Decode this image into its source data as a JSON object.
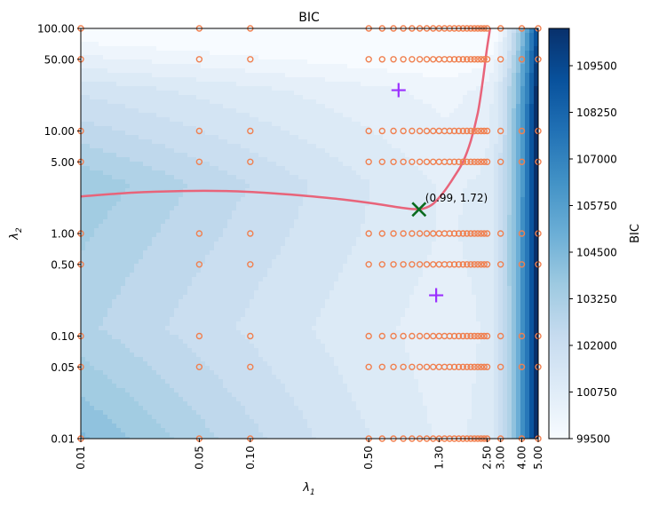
{
  "chart_data": {
    "type": "heatmap",
    "title": "BIC",
    "xlabel": "λ",
    "xlabel_sub": "1",
    "ylabel": "λ",
    "ylabel_sub": "2",
    "x_scale": "log",
    "y_scale": "log",
    "xlim": [
      0.01,
      5.0
    ],
    "ylim": [
      0.01,
      100.0
    ],
    "x_ticks": [
      {
        "value": 0.01,
        "label": "0.01"
      },
      {
        "value": 0.05,
        "label": "0.05"
      },
      {
        "value": 0.1,
        "label": "0.10"
      },
      {
        "value": 0.5,
        "label": "0.50"
      },
      {
        "value": 1.3,
        "label": "1.30"
      },
      {
        "value": 2.5,
        "label": "2.50"
      },
      {
        "value": 3.0,
        "label": "3.00"
      },
      {
        "value": 4.0,
        "label": "4.00"
      },
      {
        "value": 5.0,
        "label": "5.00"
      }
    ],
    "y_ticks": [
      {
        "value": 0.01,
        "label": "0.01"
      },
      {
        "value": 0.05,
        "label": "0.05"
      },
      {
        "value": 0.1,
        "label": "0.10"
      },
      {
        "value": 0.5,
        "label": "0.50"
      },
      {
        "value": 1.0,
        "label": "1.00"
      },
      {
        "value": 5.0,
        "label": "5.00"
      },
      {
        "value": 10.0,
        "label": "10.00"
      },
      {
        "value": 50.0,
        "label": "50.00"
      },
      {
        "value": 100.0,
        "label": "100.00"
      }
    ],
    "colorbar": {
      "label": "BIC",
      "range": [
        99500,
        110500
      ],
      "ticks": [
        {
          "value": 99500,
          "label": "99500"
        },
        {
          "value": 100750,
          "label": "100750"
        },
        {
          "value": 102000,
          "label": "102000"
        },
        {
          "value": 103250,
          "label": "103250"
        },
        {
          "value": 104500,
          "label": "104500"
        },
        {
          "value": 105750,
          "label": "105750"
        },
        {
          "value": 107000,
          "label": "107000"
        },
        {
          "value": 108250,
          "label": "108250"
        },
        {
          "value": 109500,
          "label": "109500"
        }
      ],
      "colormap": [
        "#f7fbff",
        "#deebf7",
        "#c6dbef",
        "#9ecae1",
        "#6baed6",
        "#4292c6",
        "#2171b5",
        "#08519c",
        "#08306b"
      ]
    },
    "grid_points": {
      "color": "#f08050",
      "x": [
        0.01,
        0.05,
        0.1,
        0.5,
        0.6,
        0.7,
        0.8,
        0.9,
        1.0,
        1.1,
        1.2,
        1.3,
        1.4,
        1.5,
        1.6,
        1.7,
        1.8,
        1.9,
        2.0,
        2.1,
        2.2,
        2.3,
        2.4,
        2.5,
        3.0,
        4.0,
        5.0
      ],
      "y": [
        0.01,
        0.05,
        0.1,
        0.5,
        1.0,
        5.0,
        10.0,
        50.0,
        100.0
      ]
    },
    "optimum_curve": {
      "color": "#e8647a",
      "points": [
        [
          0.01,
          2.3
        ],
        [
          0.02,
          2.5
        ],
        [
          0.04,
          2.6
        ],
        [
          0.07,
          2.6
        ],
        [
          0.12,
          2.5
        ],
        [
          0.2,
          2.35
        ],
        [
          0.35,
          2.15
        ],
        [
          0.55,
          1.95
        ],
        [
          0.75,
          1.8
        ],
        [
          0.92,
          1.73
        ],
        [
          1.05,
          1.75
        ],
        [
          1.2,
          1.95
        ],
        [
          1.4,
          2.6
        ],
        [
          1.6,
          3.6
        ],
        [
          1.8,
          5.0
        ],
        [
          2.0,
          8.0
        ],
        [
          2.2,
          15.0
        ],
        [
          2.35,
          30.0
        ],
        [
          2.48,
          60.0
        ],
        [
          2.6,
          100.0
        ]
      ]
    },
    "best_point": {
      "x": 0.99,
      "y": 1.72,
      "label": "(0.99, 1.72)",
      "color": "#0b6b1f"
    },
    "plus_markers": {
      "color": "#9b30ff",
      "points": [
        {
          "x": 0.75,
          "y": 25.0
        },
        {
          "x": 1.25,
          "y": 0.25
        }
      ]
    }
  }
}
